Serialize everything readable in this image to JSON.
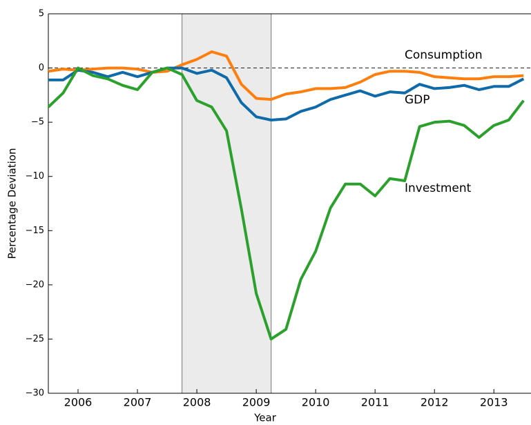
{
  "chart_data": {
    "type": "line",
    "xlabel": "Year",
    "ylabel": "Percentage Deviation",
    "x": [
      2005.5,
      2005.75,
      2006,
      2006.25,
      2006.5,
      2006.75,
      2007,
      2007.25,
      2007.5,
      2007.75,
      2008,
      2008.25,
      2008.5,
      2008.75,
      2009,
      2009.25,
      2009.5,
      2009.75,
      2010,
      2010.25,
      2010.5,
      2010.75,
      2011,
      2011.25,
      2011.5,
      2011.75,
      2012,
      2012.25,
      2012.5,
      2012.75,
      2013,
      2013.25,
      2013.5
    ],
    "series": [
      {
        "name": "Consumption",
        "color": "#ff7f0e",
        "values": [
          -0.3,
          -0.1,
          -0.2,
          -0.1,
          0.0,
          0.0,
          -0.1,
          -0.4,
          -0.3,
          0.3,
          0.8,
          1.5,
          1.1,
          -1.5,
          -2.8,
          -2.9,
          -2.4,
          -2.2,
          -1.9,
          -1.9,
          -1.8,
          -1.3,
          -0.6,
          -0.3,
          -0.3,
          -0.4,
          -0.8,
          -0.9,
          -1.0,
          -1.0,
          -0.8,
          -0.8,
          -0.7
        ]
      },
      {
        "name": "GDP",
        "color": "#0e6aa8",
        "values": [
          -1.1,
          -1.1,
          -0.2,
          -0.4,
          -0.8,
          -0.4,
          -0.8,
          -0.4,
          0.0,
          0.0,
          -0.5,
          -0.2,
          -0.9,
          -3.2,
          -4.5,
          -4.8,
          -4.7,
          -4.0,
          -3.6,
          -2.9,
          -2.5,
          -2.1,
          -2.6,
          -2.2,
          -2.3,
          -1.5,
          -1.9,
          -1.8,
          -1.6,
          -2.0,
          -1.7,
          -1.7,
          -1.0
        ]
      },
      {
        "name": "Investment",
        "color": "#2ca02c",
        "values": [
          -3.6,
          -2.3,
          0.0,
          -0.7,
          -1.0,
          -1.6,
          -2.0,
          -0.4,
          0.0,
          -0.6,
          -3.0,
          -3.6,
          -5.8,
          -13.0,
          -20.8,
          -25.0,
          -24.1,
          -19.5,
          -16.9,
          -12.9,
          -10.7,
          -10.7,
          -11.8,
          -10.2,
          -10.4,
          -5.4,
          -5.0,
          -4.9,
          -5.3,
          -6.4,
          -5.3,
          -4.8,
          -3.0
        ]
      }
    ],
    "xlim": [
      2005.5,
      2013.625
    ],
    "xticks": [
      2006,
      2007,
      2008,
      2009,
      2010,
      2011,
      2012,
      2013
    ],
    "ylim": [
      -30,
      5
    ],
    "yticks": [
      {
        "value": -30,
        "label": "−30"
      },
      {
        "value": -25,
        "label": "−25"
      },
      {
        "value": -20,
        "label": "−20"
      },
      {
        "value": -15,
        "label": "−15"
      },
      {
        "value": -10,
        "label": "−10"
      },
      {
        "value": -5,
        "label": "−5"
      },
      0,
      5
    ],
    "shaded_region": [
      2007.75,
      2009.25
    ],
    "shade_color": "#ebebeb",
    "reference_line": 0
  }
}
